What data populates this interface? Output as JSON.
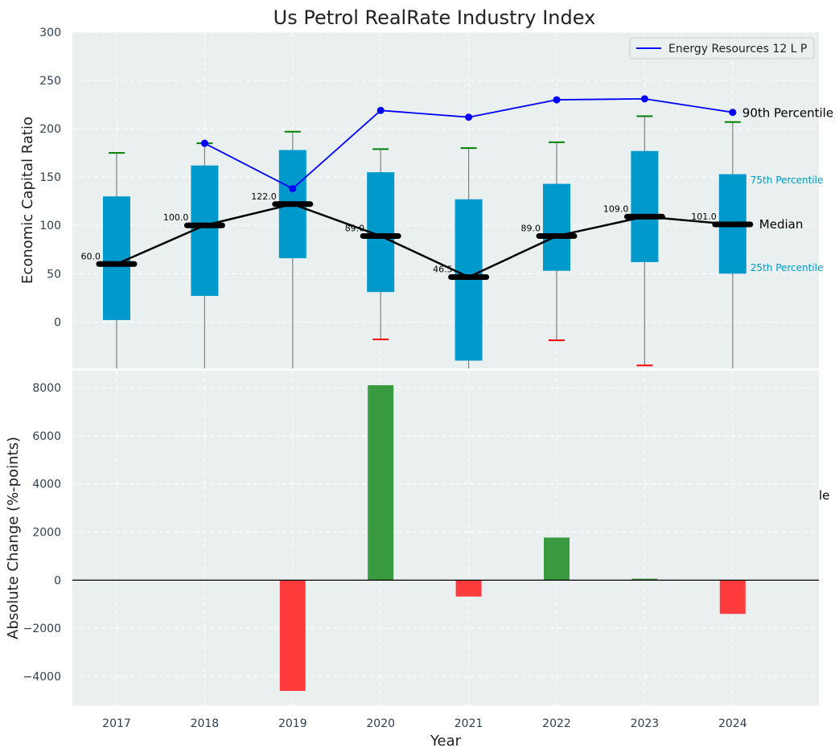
{
  "title": "Us Petrol RealRate Industry Index",
  "xlabel": "Year",
  "colors": {
    "panel_bg": "#eaeff0",
    "box": "#0099cc",
    "median": "#000000",
    "p90_line": "#0000ff",
    "cap_normal": "#008000",
    "cap_outlier": "#ff0000",
    "bar_positive": "#3a9a3f",
    "bar_negative": "#ff3b3b",
    "tick_text": "#2f4050"
  },
  "chart_data": [
    {
      "type": "box",
      "ylabel": "Economic Capital Ratio",
      "ylim": [
        -48,
        300
      ],
      "yticks": [
        0,
        50,
        100,
        150,
        200,
        250,
        300
      ],
      "grid": true,
      "categories": [
        "2017",
        "2018",
        "2019",
        "2020",
        "2021",
        "2022",
        "2023",
        "2024"
      ],
      "p25": [
        2,
        27,
        66,
        31,
        -40,
        53,
        62,
        50
      ],
      "p75": [
        130,
        162,
        178,
        155,
        127,
        143,
        177,
        153
      ],
      "median": [
        60,
        100,
        122,
        89,
        46.5,
        89,
        109,
        101
      ],
      "median_labels": [
        "60.0",
        "100.0",
        "122.0",
        "89.0",
        "46.5",
        "89.0",
        "109.0",
        "101.0"
      ],
      "whisker_high": [
        175,
        185,
        197,
        179,
        180,
        186,
        213,
        207
      ],
      "whisker_low": [
        null,
        null,
        null,
        -18,
        null,
        -19,
        -45,
        null
      ],
      "p90": [
        null,
        185,
        138,
        219,
        212,
        230,
        231,
        217
      ],
      "legend": {
        "label": "Energy Resources 12 L P",
        "position": "top-right"
      },
      "annotations": {
        "p90": "90th Percentile",
        "p75": "75th Percentile",
        "median": "Median",
        "p25": "25th Percentile"
      }
    },
    {
      "type": "bar",
      "ylabel": "Absolute Change (%-points)",
      "ylim": [
        -5200,
        8700
      ],
      "yticks": [
        -4000,
        -2000,
        0,
        2000,
        4000,
        6000,
        8000
      ],
      "ytick_labels": [
        "−4000",
        "−2000",
        "0",
        "2000",
        "4000",
        "6000",
        "8000"
      ],
      "grid": true,
      "categories": [
        "2017",
        "2018",
        "2019",
        "2020",
        "2021",
        "2022",
        "2023",
        "2024"
      ],
      "values": [
        0,
        0,
        -4600,
        8100,
        -680,
        1770,
        60,
        -1400
      ],
      "stray_label": "le"
    }
  ]
}
